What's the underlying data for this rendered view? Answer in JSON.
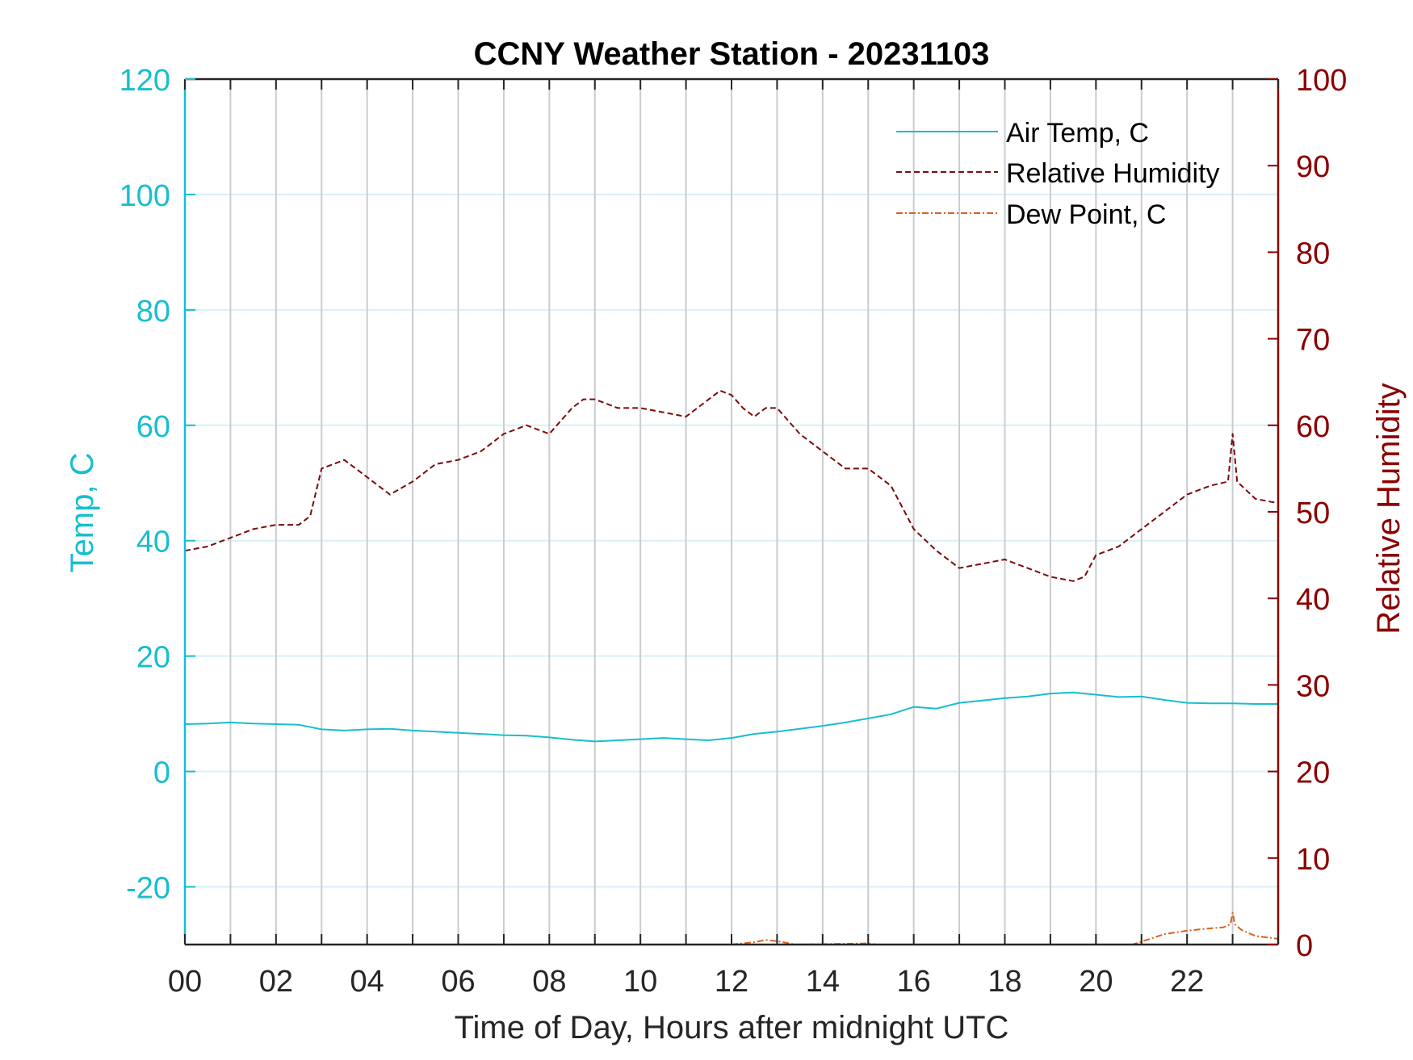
{
  "chart_data": {
    "type": "line",
    "title": "CCNY Weather Station - 20231103",
    "xlabel": "Time of Day, Hours after midnight UTC",
    "ylabel_left": "Temp, C",
    "ylabel_right": "Relative Humidity",
    "xlim": [
      0,
      24
    ],
    "ylim_left": [
      -30,
      120
    ],
    "ylim_right": [
      0,
      100
    ],
    "x_ticks": [
      0,
      2,
      4,
      6,
      8,
      10,
      12,
      14,
      16,
      18,
      20,
      22
    ],
    "x_tick_labels": [
      "00",
      "02",
      "04",
      "06",
      "08",
      "10",
      "12",
      "14",
      "16",
      "18",
      "20",
      "22"
    ],
    "y_left_ticks": [
      -20,
      0,
      20,
      40,
      60,
      80,
      100,
      120
    ],
    "y_left_tick_labels": [
      "-20",
      "0",
      "20",
      "40",
      "60",
      "80",
      "100",
      "120"
    ],
    "y_right_ticks": [
      0,
      10,
      20,
      30,
      40,
      50,
      60,
      70,
      80,
      90,
      100
    ],
    "y_right_tick_labels": [
      "0",
      "10",
      "20",
      "30",
      "40",
      "50",
      "60",
      "70",
      "80",
      "90",
      "100"
    ],
    "grid": "vertical lines each hour, horizontal lines at left ticks",
    "legend_position": "top-right",
    "colors": {
      "air_temp": "#17becf",
      "humidity": "#7b0a0a",
      "dew_point": "#d9621e",
      "left_axis": "#17becf",
      "right_axis": "#8b0000",
      "grid_vertical": "#c9ccd1",
      "grid_horizontal": "#d6f1f6"
    },
    "series": [
      {
        "name": "Air Temp, C",
        "axis": "left",
        "style": "solid",
        "x": [
          0,
          0.5,
          1,
          1.5,
          2,
          2.5,
          3,
          3.5,
          4,
          4.5,
          5,
          5.5,
          6,
          6.5,
          7,
          7.5,
          8,
          8.5,
          9,
          9.5,
          10,
          10.5,
          11,
          11.5,
          12,
          12.5,
          13,
          13.5,
          14,
          14.5,
          15,
          15.5,
          16,
          16.5,
          17,
          17.5,
          18,
          18.5,
          19,
          19.5,
          20,
          20.5,
          21,
          21.5,
          22,
          22.5,
          23,
          23.5,
          24
        ],
        "y": [
          8.2,
          8.3,
          8.5,
          8.3,
          8.2,
          8.1,
          7.3,
          7.1,
          7.3,
          7.4,
          7.1,
          6.9,
          6.7,
          6.5,
          6.3,
          6.2,
          5.9,
          5.5,
          5.2,
          5.4,
          5.6,
          5.8,
          5.6,
          5.4,
          5.8,
          6.5,
          6.9,
          7.4,
          7.9,
          8.5,
          9.2,
          9.9,
          11.2,
          10.9,
          11.9,
          12.3,
          12.7,
          13.0,
          13.5,
          13.7,
          13.3,
          12.9,
          13.0,
          12.4,
          11.9,
          11.8,
          11.8,
          11.7,
          11.7
        ]
      },
      {
        "name": "Relative Humidity",
        "axis": "right",
        "style": "dashed",
        "x": [
          0,
          0.5,
          1,
          1.5,
          2,
          2.5,
          2.75,
          3,
          3.5,
          3.75,
          4,
          4.25,
          4.5,
          5,
          5.5,
          6,
          6.5,
          7,
          7.5,
          8,
          8.5,
          8.75,
          9,
          9.5,
          10,
          10.5,
          11,
          11.5,
          11.75,
          12,
          12.25,
          12.5,
          12.75,
          13,
          13.5,
          14,
          14.5,
          15,
          15.25,
          15.5,
          16,
          16.5,
          17,
          17.5,
          18,
          18.5,
          19,
          19.5,
          19.75,
          20,
          20.5,
          21,
          21.5,
          22,
          22.5,
          22.9,
          23,
          23.1,
          23.5,
          24
        ],
        "y": [
          45.5,
          46,
          47,
          48,
          48.5,
          48.5,
          49.5,
          55,
          56,
          55,
          54,
          53,
          52,
          53.5,
          55.5,
          56,
          57,
          59,
          60,
          59,
          62,
          63,
          63,
          62,
          62,
          61.5,
          61,
          63,
          64,
          63.5,
          62,
          61,
          62,
          62,
          59,
          57,
          55,
          55,
          54,
          53,
          48,
          45.5,
          43.5,
          44,
          44.5,
          43.5,
          42.5,
          42,
          42.5,
          45,
          46,
          48,
          50,
          52,
          53,
          53.5,
          59,
          53.5,
          51.5,
          51
        ]
      },
      {
        "name": "Dew Point, C",
        "axis": "left",
        "style": "dash-dot",
        "x": [
          12,
          12.5,
          12.75,
          13,
          13.4,
          15,
          15.2,
          20.8,
          21,
          21.5,
          22,
          22.5,
          22.8,
          22.95,
          23,
          23.05,
          23.2,
          23.5,
          24
        ],
        "y": [
          -30,
          -29.6,
          -29.2,
          -29.4,
          -30,
          -29.8,
          -30,
          -30,
          -29.5,
          -28.2,
          -27.6,
          -27.2,
          -27,
          -26.5,
          -24.5,
          -26.5,
          -27.5,
          -28.5,
          -29
        ]
      }
    ]
  }
}
